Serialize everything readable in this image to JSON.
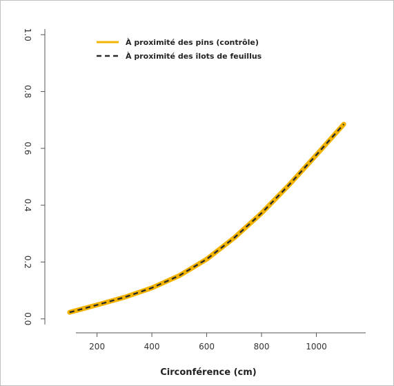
{
  "chart_data": {
    "type": "line",
    "xlabel": "Circonférence (cm)",
    "ylabel": "",
    "xlim": [
      60,
      1180
    ],
    "ylim": [
      -0.02,
      1.02
    ],
    "x_ticks": [
      200,
      400,
      600,
      800,
      1000
    ],
    "x_tick_labels": [
      "200",
      "400",
      "600",
      "800",
      "1000"
    ],
    "y_ticks": [
      0.0,
      0.2,
      0.4,
      0.6,
      0.8,
      1.0
    ],
    "y_tick_labels": [
      "0.0",
      "0.2",
      "0.4",
      "0.6",
      "0.8",
      "1.0"
    ],
    "legend_position": "top-left",
    "grid": false,
    "series": [
      {
        "name": "À proximité des pins (contrôle)",
        "color": "#f2b400",
        "style": "solid",
        "x": [
          100,
          200,
          300,
          400,
          500,
          600,
          700,
          800,
          900,
          1000,
          1100
        ],
        "y": [
          0.023,
          0.049,
          0.076,
          0.109,
          0.152,
          0.21,
          0.285,
          0.372,
          0.471,
          0.577,
          0.685
        ]
      },
      {
        "name": "À proximité des îlots de feuillus",
        "color": "#2b2b2b",
        "style": "dashed",
        "x": [
          100,
          200,
          300,
          400,
          500,
          600,
          700,
          800,
          900,
          1000,
          1100
        ],
        "y": [
          0.023,
          0.049,
          0.076,
          0.109,
          0.152,
          0.21,
          0.285,
          0.372,
          0.471,
          0.577,
          0.685
        ]
      }
    ]
  }
}
